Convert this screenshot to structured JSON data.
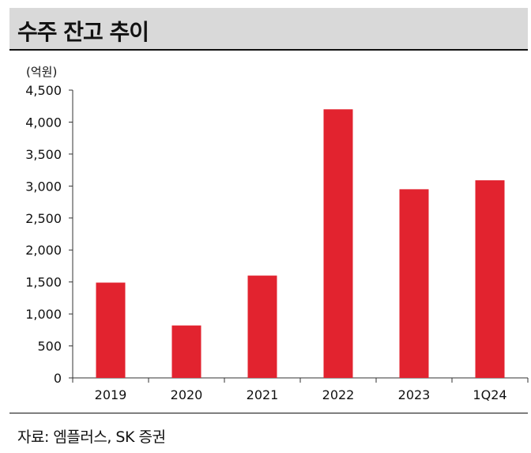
{
  "header": {
    "title": "수주 잔고 추이"
  },
  "source": {
    "text": "자료: 엠플러스, SK 증권"
  },
  "chart_data": {
    "type": "bar",
    "unit_label": "(억원)",
    "categories": [
      "2019",
      "2020",
      "2021",
      "2022",
      "2023",
      "1Q24"
    ],
    "values": [
      1490,
      820,
      1600,
      4200,
      2950,
      3090
    ],
    "ylim": [
      0,
      4500
    ],
    "yticks": [
      0,
      500,
      1000,
      1500,
      2000,
      2500,
      3000,
      3500,
      4000,
      4500
    ],
    "ytick_labels": [
      "0",
      "500",
      "1,000",
      "1,500",
      "2,000",
      "2,500",
      "3,000",
      "3,500",
      "4,000",
      "4,500"
    ],
    "grid": false,
    "colors": {
      "bar": "#e2232f",
      "axis": "#333333",
      "text": "#111111"
    }
  }
}
